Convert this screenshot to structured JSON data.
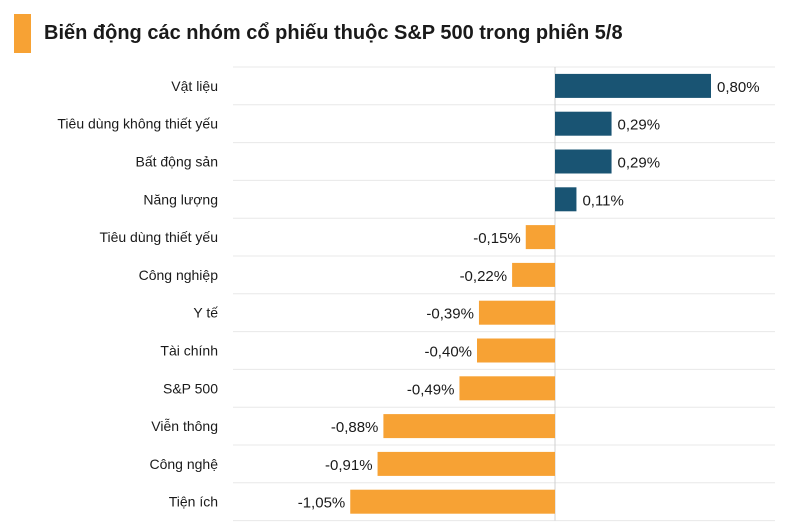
{
  "title": "Biến động các nhóm cổ phiếu thuộc S&P 500 trong phiên 5/8",
  "colors": {
    "positive": "#195473",
    "negative": "#f7a234",
    "accent": "#f7a234",
    "grid": "#e8e8e8",
    "text": "#1a1a1a"
  },
  "chart_data": {
    "type": "bar",
    "orientation": "horizontal",
    "title": "Biến động các nhóm cổ phiếu thuộc S&P 500 trong phiên 5/8",
    "categories": [
      "Vật liệu",
      "Tiêu dùng không thiết yếu",
      "Bất động sản",
      "Năng lượng",
      "Tiêu dùng thiết yếu",
      "Công nghiệp",
      "Y tế",
      "Tài chính",
      "S&P 500",
      "Viễn thông",
      "Công nghệ",
      "Tiện ích"
    ],
    "values": [
      0.8,
      0.29,
      0.29,
      0.11,
      -0.15,
      -0.22,
      -0.39,
      -0.4,
      -0.49,
      -0.88,
      -0.91,
      -1.05
    ],
    "labels": [
      "0,80%",
      "0,29%",
      "0,29%",
      "0,11%",
      "-0,15%",
      "-0,22%",
      "-0,39%",
      "-0,40%",
      "-0,49%",
      "-0,88%",
      "-0,91%",
      "-1,05%"
    ],
    "unit": "%",
    "xlim": [
      -1.05,
      0.8
    ],
    "grid": true
  }
}
